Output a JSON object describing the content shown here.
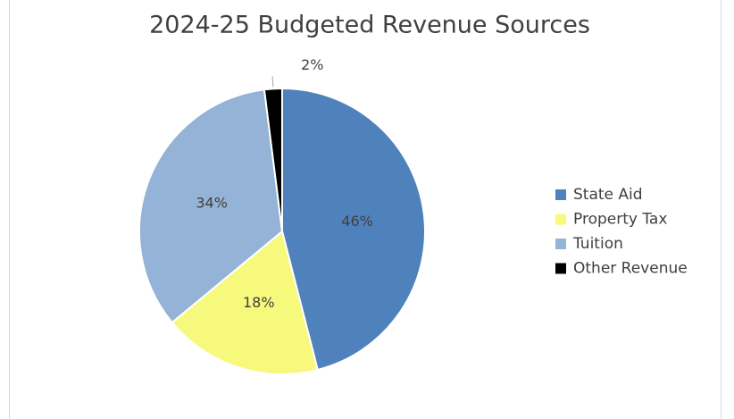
{
  "chart_data": {
    "type": "pie",
    "title": "2024-25 Budgeted Revenue Sources",
    "categories": [
      "State Aid",
      "Property Tax",
      "Tuition",
      "Other Revenue"
    ],
    "values": [
      46,
      18,
      34,
      2
    ],
    "value_labels": [
      "46%",
      "18%",
      "34%",
      "2%"
    ],
    "colors": [
      "#4f81bd",
      "#f6f97b",
      "#95b3d7",
      "#000000"
    ],
    "legend": "right"
  }
}
